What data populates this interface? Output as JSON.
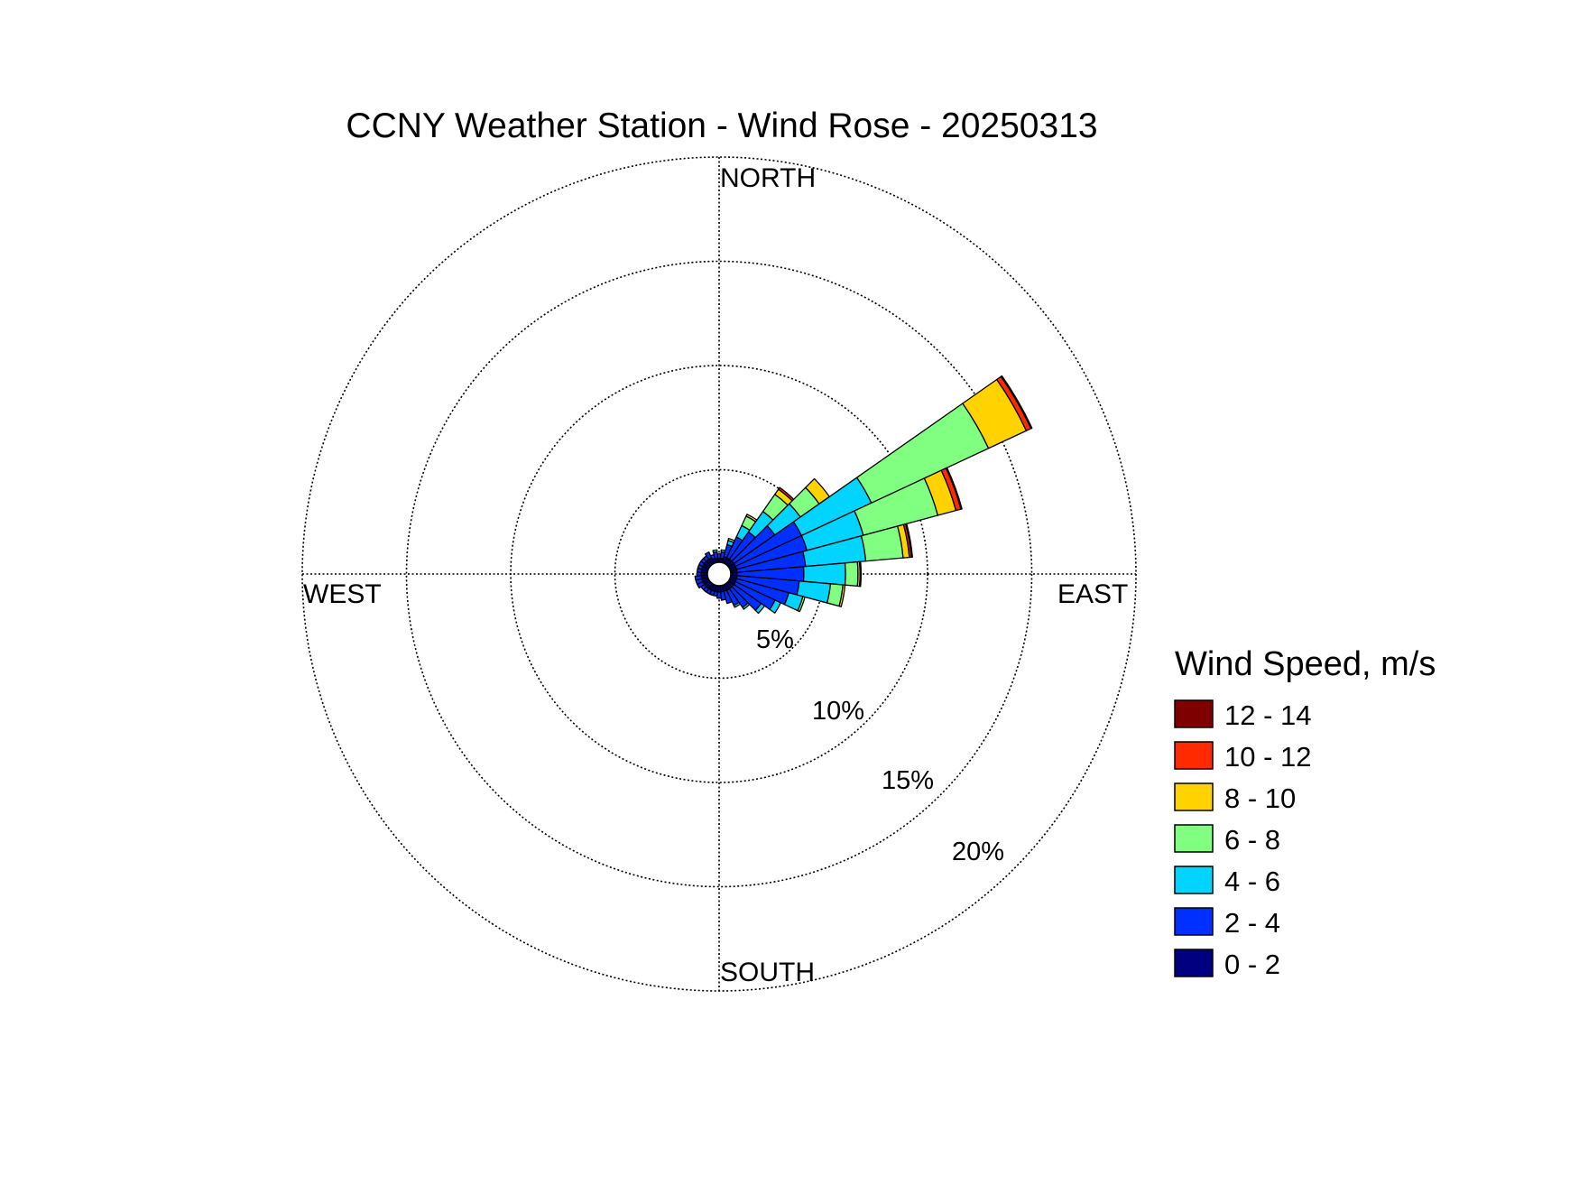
{
  "chart_data": {
    "type": "wind-rose",
    "title": "CCNY Weather Station - Wind Rose - 20250313",
    "directions": {
      "north": "NORTH",
      "south": "SOUTH",
      "east": "EAST",
      "west": "WEST"
    },
    "radial_axis": {
      "max_percent": 20,
      "ticks": [
        5,
        10,
        15,
        20
      ],
      "tick_labels": [
        "5%",
        "10%",
        "15%",
        "20%"
      ],
      "grid": true,
      "grid_style": "dotted"
    },
    "legend": {
      "title": "Wind Speed, m/s",
      "position": "right",
      "bins": [
        {
          "label": "12 - 14",
          "color": "#7f0000"
        },
        {
          "label": "10 - 12",
          "color": "#ff2a00"
        },
        {
          "label": "8 - 10",
          "color": "#ffd200"
        },
        {
          "label": "6 - 8",
          "color": "#80ff80"
        },
        {
          "label": "4 - 6",
          "color": "#00d4ff"
        },
        {
          "label": "2 - 4",
          "color": "#0030ff"
        },
        {
          "label": "0 - 2",
          "color": "#000080"
        }
      ]
    },
    "bin_order": [
      "0 - 2",
      "2 - 4",
      "4 - 6",
      "6 - 8",
      "8 - 10",
      "10 - 12",
      "12 - 14"
    ],
    "sector_width_deg": 10,
    "sectors": [
      {
        "direction_deg": 0,
        "percent": [
          0.2,
          0.2,
          0,
          0,
          0,
          0,
          0
        ]
      },
      {
        "direction_deg": 10,
        "percent": [
          0.2,
          0.3,
          0.1,
          0,
          0,
          0,
          0
        ]
      },
      {
        "direction_deg": 20,
        "percent": [
          0.3,
          0.6,
          0.2,
          0.1,
          0,
          0,
          0
        ]
      },
      {
        "direction_deg": 30,
        "percent": [
          0.3,
          1.1,
          0.6,
          0.5,
          0.1,
          0,
          0
        ]
      },
      {
        "direction_deg": 40,
        "percent": [
          0.3,
          1.6,
          1.2,
          1.0,
          0.3,
          0.1,
          0
        ]
      },
      {
        "direction_deg": 50,
        "percent": [
          0.3,
          2.4,
          1.5,
          1.1,
          0.6,
          0,
          0
        ]
      },
      {
        "direction_deg": 60,
        "percent": [
          0.3,
          3.5,
          3.7,
          6.2,
          2.0,
          0.25,
          0.05
        ]
      },
      {
        "direction_deg": 70,
        "percent": [
          0.3,
          3.5,
          2.8,
          3.7,
          0.9,
          0.25,
          0.05
        ]
      },
      {
        "direction_deg": 80,
        "percent": [
          0.3,
          3.3,
          2.9,
          1.8,
          0.3,
          0.1,
          0.05
        ]
      },
      {
        "direction_deg": 90,
        "percent": [
          0.3,
          3.2,
          2.0,
          0.6,
          0.1,
          0.05,
          0
        ]
      },
      {
        "direction_deg": 100,
        "percent": [
          0.3,
          3.0,
          1.5,
          0.6,
          0.1,
          0,
          0
        ]
      },
      {
        "direction_deg": 110,
        "percent": [
          0.3,
          2.6,
          0.7,
          0.1,
          0,
          0,
          0
        ]
      },
      {
        "direction_deg": 120,
        "percent": [
          0.3,
          2.1,
          0.3,
          0,
          0,
          0,
          0
        ]
      },
      {
        "direction_deg": 130,
        "percent": [
          0.3,
          1.6,
          0.2,
          0,
          0,
          0,
          0
        ]
      },
      {
        "direction_deg": 140,
        "percent": [
          0.3,
          1.1,
          0.1,
          0,
          0,
          0,
          0
        ]
      },
      {
        "direction_deg": 150,
        "percent": [
          0.3,
          0.8,
          0.1,
          0,
          0,
          0,
          0
        ]
      },
      {
        "direction_deg": 160,
        "percent": [
          0.3,
          0.6,
          0,
          0,
          0,
          0,
          0
        ]
      },
      {
        "direction_deg": 170,
        "percent": [
          0.3,
          0.4,
          0,
          0,
          0,
          0,
          0
        ]
      },
      {
        "direction_deg": 180,
        "percent": [
          0.3,
          0.3,
          0,
          0,
          0,
          0,
          0
        ]
      },
      {
        "direction_deg": 190,
        "percent": [
          0.3,
          0.2,
          0,
          0,
          0,
          0,
          0
        ]
      },
      {
        "direction_deg": 200,
        "percent": [
          0.3,
          0.2,
          0,
          0,
          0,
          0,
          0
        ]
      },
      {
        "direction_deg": 210,
        "percent": [
          0.3,
          0.2,
          0,
          0,
          0,
          0,
          0
        ]
      },
      {
        "direction_deg": 220,
        "percent": [
          0.3,
          0.2,
          0,
          0,
          0,
          0,
          0
        ]
      },
      {
        "direction_deg": 230,
        "percent": [
          0.3,
          0.2,
          0,
          0,
          0,
          0,
          0
        ]
      },
      {
        "direction_deg": 240,
        "percent": [
          0.3,
          0.3,
          0,
          0,
          0,
          0,
          0
        ]
      },
      {
        "direction_deg": 250,
        "percent": [
          0.3,
          0.3,
          0,
          0,
          0,
          0,
          0
        ]
      },
      {
        "direction_deg": 260,
        "percent": [
          0.3,
          0.3,
          0,
          0,
          0,
          0,
          0
        ]
      },
      {
        "direction_deg": 270,
        "percent": [
          0.3,
          0.2,
          0,
          0,
          0,
          0,
          0
        ]
      },
      {
        "direction_deg": 280,
        "percent": [
          0.3,
          0.2,
          0,
          0,
          0,
          0,
          0
        ]
      },
      {
        "direction_deg": 290,
        "percent": [
          0.3,
          0.2,
          0,
          0,
          0,
          0,
          0
        ]
      },
      {
        "direction_deg": 300,
        "percent": [
          0.3,
          0.2,
          0,
          0,
          0,
          0,
          0
        ]
      },
      {
        "direction_deg": 310,
        "percent": [
          0.3,
          0.2,
          0,
          0,
          0,
          0,
          0
        ]
      },
      {
        "direction_deg": 320,
        "percent": [
          0.3,
          0.2,
          0,
          0,
          0,
          0,
          0
        ]
      },
      {
        "direction_deg": 330,
        "percent": [
          0.3,
          0.3,
          0,
          0,
          0,
          0,
          0
        ]
      },
      {
        "direction_deg": 340,
        "percent": [
          0.2,
          0.2,
          0,
          0,
          0,
          0,
          0
        ]
      },
      {
        "direction_deg": 350,
        "percent": [
          0.2,
          0.3,
          0.1,
          0,
          0,
          0,
          0
        ]
      }
    ]
  }
}
